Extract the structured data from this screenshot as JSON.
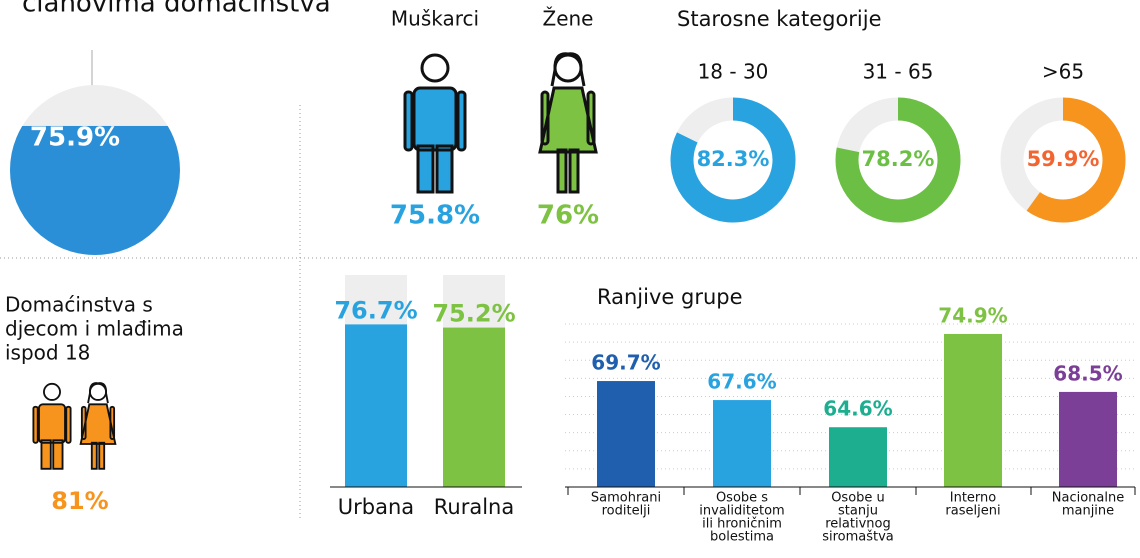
{
  "chart_data": [
    {
      "type": "fill-circle",
      "title": "članovima domaćinstva",
      "values": [
        75.9
      ],
      "value_labels": [
        "75.9%"
      ],
      "color": "#2a8fd6"
    },
    {
      "type": "icon",
      "categories": [
        "Muškarci",
        "Žene"
      ],
      "values": [
        75.8,
        76
      ],
      "value_labels": [
        "75.8%",
        "76%"
      ],
      "colors": [
        "#29a3e0",
        "#7dc242"
      ]
    },
    {
      "type": "donut",
      "title": "Starosne kategorije",
      "categories": [
        "18 - 30",
        "31 - 65",
        ">65"
      ],
      "values": [
        82.3,
        78.2,
        59.9
      ],
      "value_labels": [
        "82.3%",
        "78.2%",
        "59.9%"
      ],
      "colors": [
        "#29a3e0",
        "#6cbf45",
        "#f7941d"
      ],
      "label_colors": [
        "#29a3e0",
        "#6cbf45",
        "#f26531"
      ]
    },
    {
      "type": "icon",
      "title": [
        "Domaćinstva s",
        "djecom i mlađima",
        "ispod 18"
      ],
      "values": [
        81
      ],
      "value_labels": [
        "81%"
      ],
      "colors": [
        "#f7941d"
      ]
    },
    {
      "type": "bar",
      "categories": [
        "Urbana",
        "Ruralna"
      ],
      "values": [
        76.7,
        75.2
      ],
      "value_labels": [
        "76.7%",
        "75.2%"
      ],
      "colors": [
        "#29a3e0",
        "#7dc242"
      ],
      "ylim": [
        0,
        100
      ]
    },
    {
      "type": "bar",
      "title": "Ranjive grupe",
      "categories": [
        [
          "Samohrani",
          "roditelji"
        ],
        [
          "Osobe s",
          "invaliditetom",
          "ili hroničnim",
          "bolestima"
        ],
        [
          "Osobe u",
          "stanju",
          "relativnog",
          "siromaštva"
        ],
        [
          "Interno",
          "raseljeni"
        ],
        [
          "Nacionalne",
          "manjine"
        ]
      ],
      "values": [
        69.7,
        67.6,
        64.6,
        74.9,
        68.5
      ],
      "value_labels": [
        "69.7%",
        "67.6%",
        "64.6%",
        "74.9%",
        "68.5%"
      ],
      "colors": [
        "#1f5fae",
        "#29a3e0",
        "#1cae8f",
        "#7dc242",
        "#7b3f98"
      ],
      "ylim": [
        58,
        76
      ],
      "yticks": [
        58,
        60,
        62,
        64,
        66,
        68,
        70,
        72,
        74,
        76
      ],
      "grid": true
    }
  ]
}
